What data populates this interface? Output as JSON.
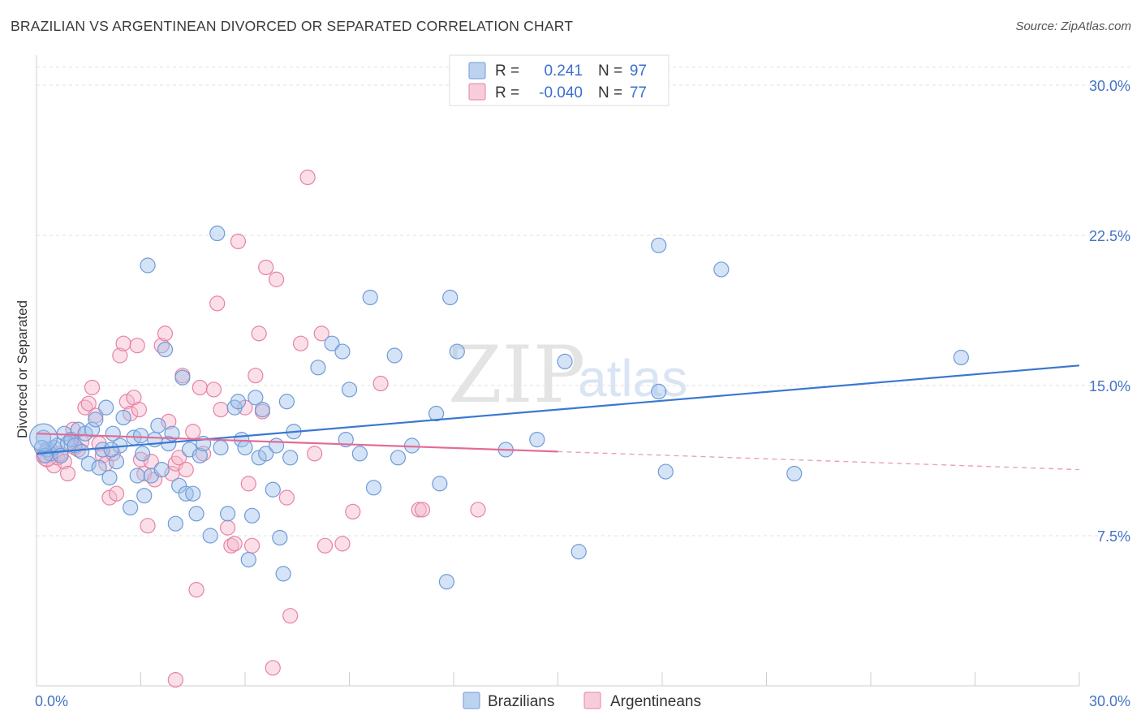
{
  "title": "BRAZILIAN VS ARGENTINEAN DIVORCED OR SEPARATED CORRELATION CHART",
  "source": "Source: ZipAtlas.com",
  "watermark": {
    "part1": "ZIP",
    "part2": "atlas"
  },
  "legend": {
    "rows": [
      {
        "r_label": "R =",
        "r_value": "0.241",
        "n_label": "N =",
        "n_value": "97",
        "color": "#9fc0ea",
        "stroke": "#6f9bd8"
      },
      {
        "r_label": "R =",
        "r_value": "-0.040",
        "n_label": "N =",
        "n_value": "77",
        "color": "#f5b8cb",
        "stroke": "#e882a4"
      }
    ]
  },
  "bottom_legend": [
    "Brazilians",
    "Argentineans"
  ],
  "chart_data": {
    "type": "scatter",
    "title": "BRAZILIAN VS ARGENTINEAN DIVORCED OR SEPARATED CORRELATION CHART",
    "xlabel": "",
    "ylabel": "Divorced or Separated",
    "xlim": [
      0,
      30
    ],
    "ylim": [
      0,
      31.5
    ],
    "x_tick_labels": [
      "0.0%",
      "30.0%"
    ],
    "y_ticks": [
      7.5,
      15.0,
      22.5,
      30.0
    ],
    "y_tick_labels": [
      "7.5%",
      "15.0%",
      "22.5%",
      "30.0%"
    ],
    "grid": true,
    "legend_position": "top-center",
    "series": [
      {
        "name": "Brazilians",
        "color": "#6f9bd8",
        "fill": "#9fc0ea",
        "r": 0.241,
        "n": 97,
        "trend": {
          "x0": 0,
          "y0": 11.6,
          "x1": 30,
          "y1": 16.0
        },
        "points": [
          [
            0.2,
            12.4
          ],
          [
            0.3,
            11.8
          ],
          [
            0.4,
            11.6
          ],
          [
            0.5,
            11.9
          ],
          [
            0.6,
            12.0
          ],
          [
            0.7,
            11.5
          ],
          [
            0.8,
            12.6
          ],
          [
            0.9,
            12.1
          ],
          [
            1.0,
            12.3
          ],
          [
            1.1,
            12.0
          ],
          [
            1.2,
            12.8
          ],
          [
            1.3,
            11.7
          ],
          [
            1.4,
            12.6
          ],
          [
            1.5,
            11.1
          ],
          [
            1.6,
            12.8
          ],
          [
            1.7,
            13.3
          ],
          [
            1.8,
            10.9
          ],
          [
            1.9,
            11.8
          ],
          [
            2.0,
            13.9
          ],
          [
            2.1,
            10.4
          ],
          [
            2.2,
            12.6
          ],
          [
            2.3,
            11.2
          ],
          [
            2.4,
            12.0
          ],
          [
            2.5,
            13.4
          ],
          [
            2.7,
            8.9
          ],
          [
            2.8,
            12.4
          ],
          [
            2.9,
            10.5
          ],
          [
            3.0,
            12.5
          ],
          [
            3.1,
            9.5
          ],
          [
            3.2,
            21.0
          ],
          [
            3.3,
            10.5
          ],
          [
            3.4,
            12.3
          ],
          [
            3.5,
            13.0
          ],
          [
            3.6,
            10.8
          ],
          [
            3.7,
            16.8
          ],
          [
            3.8,
            12.1
          ],
          [
            3.9,
            12.6
          ],
          [
            4.0,
            8.1
          ],
          [
            4.1,
            10.0
          ],
          [
            4.2,
            15.4
          ],
          [
            4.3,
            9.6
          ],
          [
            4.4,
            11.8
          ],
          [
            4.5,
            9.6
          ],
          [
            4.6,
            8.6
          ],
          [
            4.7,
            11.5
          ],
          [
            4.8,
            12.1
          ],
          [
            5.0,
            7.5
          ],
          [
            5.2,
            22.6
          ],
          [
            5.3,
            11.9
          ],
          [
            5.5,
            8.6
          ],
          [
            5.7,
            13.9
          ],
          [
            5.8,
            14.2
          ],
          [
            5.9,
            12.3
          ],
          [
            6.0,
            11.9
          ],
          [
            6.1,
            6.3
          ],
          [
            6.2,
            8.5
          ],
          [
            6.3,
            14.4
          ],
          [
            6.4,
            11.4
          ],
          [
            6.5,
            13.8
          ],
          [
            6.6,
            11.6
          ],
          [
            6.8,
            9.8
          ],
          [
            6.9,
            12.0
          ],
          [
            7.0,
            7.4
          ],
          [
            7.1,
            5.6
          ],
          [
            7.2,
            14.2
          ],
          [
            7.3,
            11.4
          ],
          [
            7.4,
            12.7
          ],
          [
            8.1,
            15.9
          ],
          [
            8.5,
            17.1
          ],
          [
            8.8,
            16.7
          ],
          [
            8.9,
            12.3
          ],
          [
            9.0,
            14.8
          ],
          [
            9.3,
            11.6
          ],
          [
            9.6,
            19.4
          ],
          [
            9.7,
            9.9
          ],
          [
            10.3,
            16.5
          ],
          [
            10.4,
            11.4
          ],
          [
            10.8,
            12.0
          ],
          [
            11.5,
            13.6
          ],
          [
            11.6,
            10.1
          ],
          [
            11.8,
            5.2
          ],
          [
            11.9,
            19.4
          ],
          [
            12.1,
            16.7
          ],
          [
            13.5,
            11.8
          ],
          [
            14.4,
            12.3
          ],
          [
            15.2,
            16.2
          ],
          [
            15.6,
            6.7
          ],
          [
            17.9,
            22.0
          ],
          [
            17.9,
            14.7
          ],
          [
            18.1,
            10.7
          ],
          [
            19.7,
            20.8
          ],
          [
            21.8,
            10.6
          ],
          [
            26.6,
            16.4
          ],
          [
            0.15,
            11.9
          ],
          [
            0.25,
            11.5
          ],
          [
            2.15,
            11.8
          ],
          [
            3.05,
            11.6
          ]
        ]
      },
      {
        "name": "Argentineans",
        "color": "#e882a4",
        "fill": "#f5b8cb",
        "r": -0.04,
        "n": 77,
        "trend": {
          "x0": 0,
          "y0": 12.6,
          "x1": 15.0,
          "y1": 11.7,
          "dash_x1": 30,
          "dash_y1": 10.8
        },
        "points": [
          [
            0.2,
            11.5
          ],
          [
            0.3,
            11.3
          ],
          [
            0.4,
            11.8
          ],
          [
            0.5,
            11.0
          ],
          [
            0.6,
            11.4
          ],
          [
            0.7,
            11.6
          ],
          [
            0.8,
            11.2
          ],
          [
            0.9,
            10.6
          ],
          [
            1.0,
            12.3
          ],
          [
            1.1,
            11.9
          ],
          [
            1.2,
            11.8
          ],
          [
            1.3,
            12.2
          ],
          [
            1.4,
            13.9
          ],
          [
            1.5,
            14.1
          ],
          [
            1.6,
            14.9
          ],
          [
            1.7,
            13.5
          ],
          [
            1.8,
            12.1
          ],
          [
            1.9,
            11.5
          ],
          [
            2.0,
            11.1
          ],
          [
            2.1,
            9.4
          ],
          [
            2.2,
            11.6
          ],
          [
            2.3,
            9.6
          ],
          [
            2.4,
            16.5
          ],
          [
            2.5,
            17.1
          ],
          [
            2.6,
            14.2
          ],
          [
            2.7,
            13.6
          ],
          [
            2.8,
            14.4
          ],
          [
            2.9,
            17.0
          ],
          [
            3.0,
            11.3
          ],
          [
            3.1,
            10.6
          ],
          [
            3.2,
            8.0
          ],
          [
            3.3,
            11.2
          ],
          [
            3.4,
            10.3
          ],
          [
            3.6,
            17.0
          ],
          [
            3.7,
            17.6
          ],
          [
            3.8,
            13.2
          ],
          [
            3.9,
            10.6
          ],
          [
            4.0,
            11.1
          ],
          [
            4.1,
            11.4
          ],
          [
            4.2,
            15.5
          ],
          [
            4.3,
            10.8
          ],
          [
            4.5,
            12.7
          ],
          [
            4.6,
            4.8
          ],
          [
            4.7,
            14.9
          ],
          [
            4.8,
            11.6
          ],
          [
            5.1,
            14.8
          ],
          [
            5.2,
            19.1
          ],
          [
            5.3,
            13.8
          ],
          [
            5.5,
            7.9
          ],
          [
            5.6,
            7.0
          ],
          [
            5.7,
            7.1
          ],
          [
            5.8,
            22.2
          ],
          [
            6.0,
            13.9
          ],
          [
            6.1,
            10.1
          ],
          [
            6.2,
            7.0
          ],
          [
            6.3,
            15.5
          ],
          [
            6.4,
            17.6
          ],
          [
            6.5,
            13.7
          ],
          [
            6.6,
            20.9
          ],
          [
            6.8,
            0.9
          ],
          [
            6.9,
            20.3
          ],
          [
            7.2,
            9.4
          ],
          [
            7.3,
            3.5
          ],
          [
            7.6,
            17.1
          ],
          [
            7.8,
            25.4
          ],
          [
            8.0,
            11.6
          ],
          [
            8.2,
            17.6
          ],
          [
            8.3,
            7.0
          ],
          [
            8.8,
            7.1
          ],
          [
            9.1,
            8.7
          ],
          [
            9.9,
            15.1
          ],
          [
            11.0,
            8.8
          ],
          [
            11.1,
            8.8
          ],
          [
            12.7,
            8.8
          ],
          [
            4.0,
            0.3
          ],
          [
            2.95,
            13.8
          ],
          [
            1.05,
            12.8
          ]
        ]
      }
    ]
  }
}
